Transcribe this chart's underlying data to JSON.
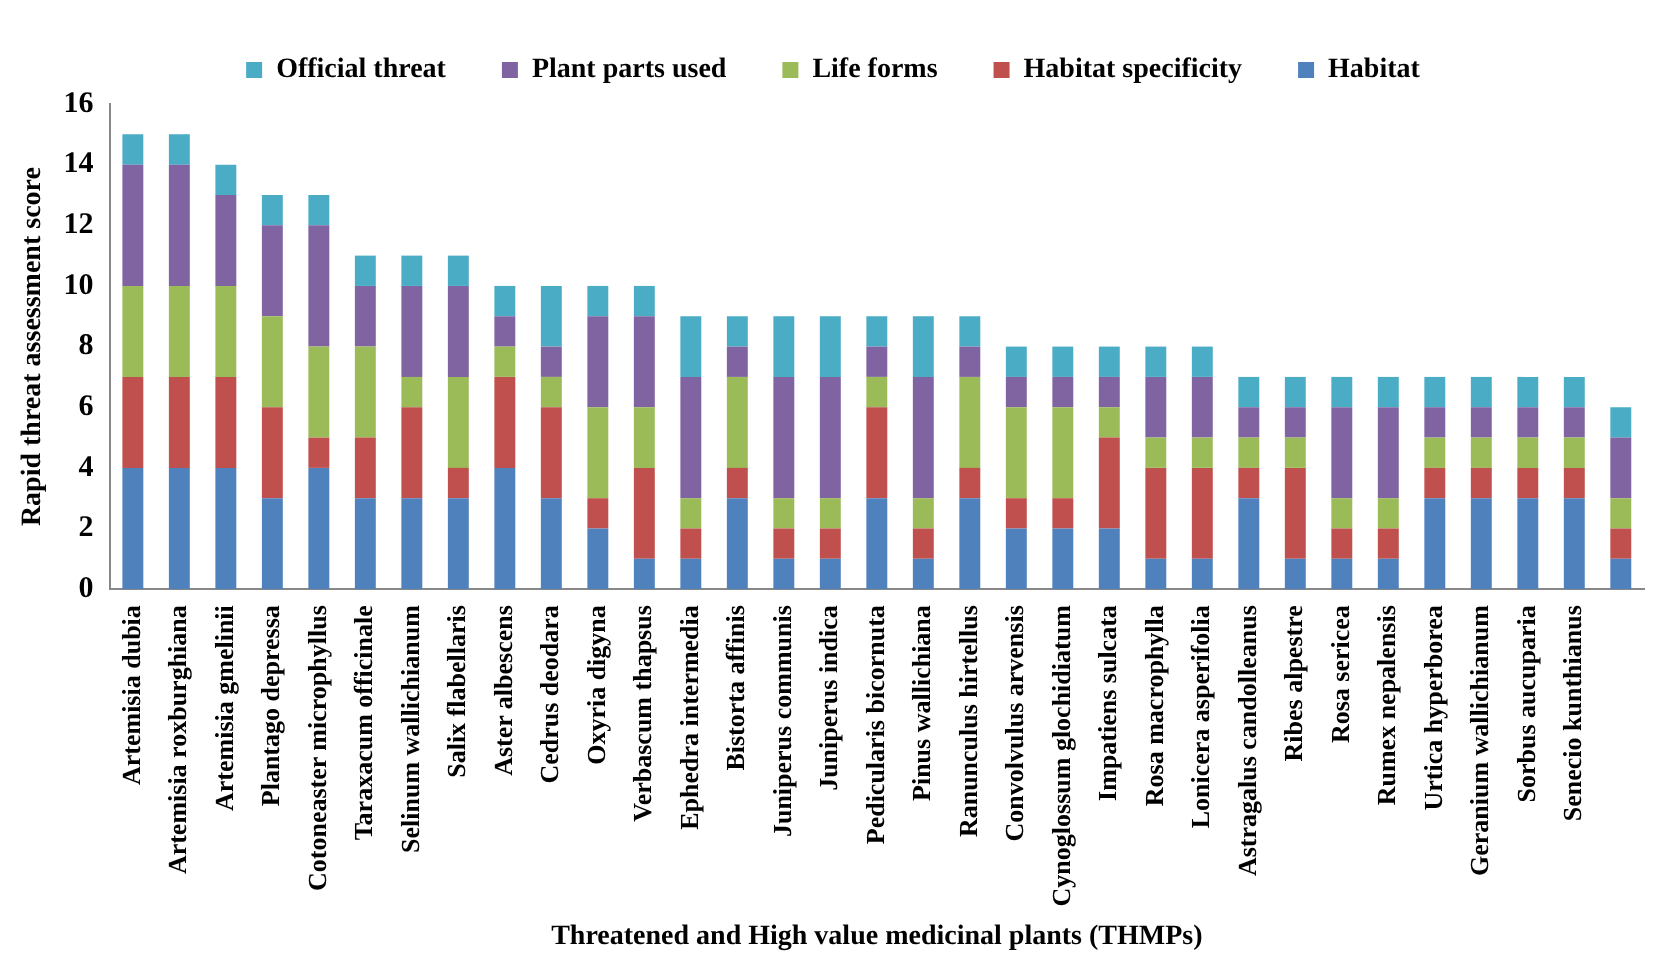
{
  "chart_data": {
    "type": "bar",
    "stacked": true,
    "xlabel": "Threatened and High value medicinal plants (THMPs)",
    "ylabel": "Rapid threat assessment score",
    "categories": [
      "Artemisia dubia",
      "Artemisia roxburghiana",
      "Artemisia gmelinii",
      "Plantago depressa",
      "Cotoneaster microphyllus",
      "Taraxacum officinale",
      "Selinum wallichianum",
      "Salix flabellaris",
      "Aster albescens",
      "Cedrus deodara",
      "Oxyria digyna",
      "Verbascum thapsus",
      "Ephedra intermedia",
      "Bistorta affinis",
      "Juniperus communis",
      "Juniperus indica",
      "Pedicularis bicornuta",
      "Pinus wallichiana",
      "Ranunculus hirtellus",
      "Convolvulus arvensis",
      "Cynoglossum glochidiatum",
      "Impatiens sulcata",
      "Rosa macrophylla",
      "Lonicera asperifolia",
      "Astragalus candolleanus",
      "Ribes alpestre",
      "Rosa sericea",
      "Rumex nepalensis",
      "Urtica hyperborea",
      "Geranium wallichianum",
      "Sorbus aucuparia",
      "Senecio kunthianus",
      null
    ],
    "series": [
      {
        "name": "Habitat",
        "color": "#4f81bd",
        "values": [
          4,
          4,
          4,
          3,
          4,
          3,
          3,
          3,
          4,
          3,
          2,
          1,
          1,
          3,
          1,
          1,
          3,
          1,
          3,
          2,
          2,
          2,
          1,
          1,
          3,
          1,
          1,
          1,
          3,
          3,
          3,
          3,
          1
        ]
      },
      {
        "name": "Habitat specificity",
        "color": "#c0504d",
        "values": [
          3,
          3,
          3,
          3,
          1,
          2,
          3,
          1,
          3,
          3,
          1,
          3,
          1,
          1,
          1,
          1,
          3,
          1,
          1,
          1,
          1,
          3,
          3,
          3,
          1,
          3,
          1,
          1,
          1,
          1,
          1,
          1,
          1
        ]
      },
      {
        "name": "Life forms",
        "color": "#9bbb59",
        "values": [
          3,
          3,
          3,
          3,
          3,
          3,
          1,
          3,
          1,
          1,
          3,
          2,
          1,
          3,
          1,
          1,
          1,
          1,
          3,
          3,
          3,
          1,
          1,
          1,
          1,
          1,
          1,
          1,
          1,
          1,
          1,
          1,
          1
        ]
      },
      {
        "name": "Plant parts used",
        "color": "#8064a2",
        "values": [
          4,
          4,
          3,
          3,
          4,
          2,
          3,
          3,
          1,
          1,
          3,
          3,
          4,
          1,
          4,
          4,
          1,
          4,
          1,
          1,
          1,
          1,
          2,
          2,
          1,
          1,
          3,
          3,
          1,
          1,
          1,
          1,
          2
        ]
      },
      {
        "name": "Official threat",
        "color": "#4bacc6",
        "values": [
          1,
          1,
          1,
          1,
          1,
          1,
          1,
          1,
          1,
          2,
          1,
          1,
          2,
          1,
          2,
          2,
          1,
          2,
          1,
          1,
          1,
          1,
          1,
          1,
          1,
          1,
          1,
          1,
          1,
          1,
          1,
          1,
          1
        ]
      }
    ],
    "ylim": [
      0,
      16
    ],
    "yticks": [
      0,
      2,
      4,
      6,
      8,
      10,
      12,
      14,
      16
    ],
    "grid": false,
    "legend": "top"
  }
}
